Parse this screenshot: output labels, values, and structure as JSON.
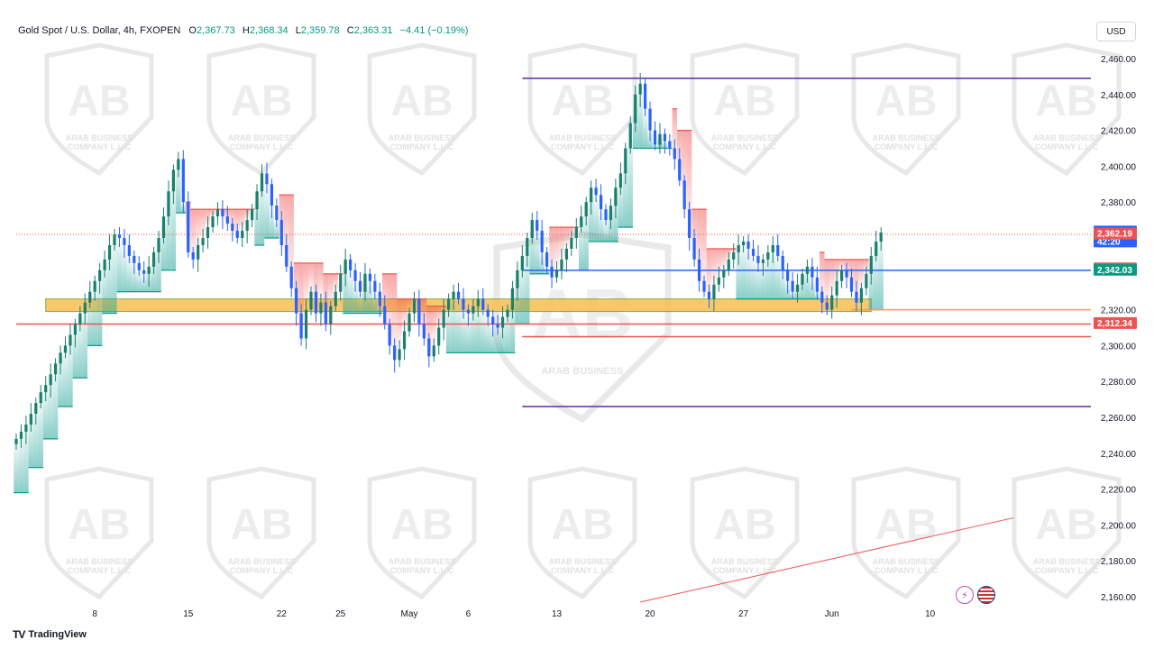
{
  "header": {
    "symbol": "Gold Spot / U.S. Dollar, 4h, FXOPEN",
    "open_label": "O",
    "open": "2,367.73",
    "high_label": "H",
    "high": "2,368.34",
    "low_label": "L",
    "low": "2,359.78",
    "close_label": "C",
    "close": "2,363.31",
    "change": "−4.41 (−0.19%)"
  },
  "currency": "USD",
  "brand": {
    "logo": "TV",
    "name": "TradingView"
  },
  "watermark": {
    "line1": "ARAB BUSINESS",
    "line2": "COMPANY L.L.C",
    "monogram": "AB"
  },
  "colors": {
    "up": "#089981",
    "down": "#2962ff",
    "bull_fill": "#26a69a",
    "bear_fill": "#ef5350",
    "purple": "#5b2c9e",
    "blue_line": "#2962ff",
    "red_line": "#ef5350",
    "zone": "#f9bf53",
    "orange_line": "#f5a623"
  },
  "icons": {
    "lightning": "lightning-icon",
    "flag": "us-flag-icon"
  },
  "chart_data": {
    "type": "candlestick",
    "y_range": [
      2150,
      2470
    ],
    "y_ticks": [
      {
        "value": 2460,
        "label": "2,460.00"
      },
      {
        "value": 2440,
        "label": "2,440.00"
      },
      {
        "value": 2420,
        "label": "2,420.00"
      },
      {
        "value": 2400,
        "label": "2,400.00"
      },
      {
        "value": 2380,
        "label": "2,380.00"
      },
      {
        "value": 2320,
        "label": "2,320.00"
      },
      {
        "value": 2300,
        "label": "2,300.00"
      },
      {
        "value": 2280,
        "label": "2,280.00"
      },
      {
        "value": 2260,
        "label": "2,260.00"
      },
      {
        "value": 2240,
        "label": "2,240.00"
      },
      {
        "value": 2220,
        "label": "2,220.00"
      },
      {
        "value": 2200,
        "label": "2,200.00"
      },
      {
        "value": 2180,
        "label": "2,180.00"
      },
      {
        "value": 2160,
        "label": "2,160.00"
      }
    ],
    "x_ticks": [
      {
        "label": "8",
        "index": 16
      },
      {
        "label": "15",
        "index": 35
      },
      {
        "label": "22",
        "index": 54
      },
      {
        "label": "25",
        "index": 66
      },
      {
        "label": "May",
        "index": 80
      },
      {
        "label": "6",
        "index": 92
      },
      {
        "label": "13",
        "index": 110
      },
      {
        "label": "20",
        "index": 129
      },
      {
        "label": "27",
        "index": 148
      },
      {
        "label": "Jun",
        "index": 166
      },
      {
        "label": "10",
        "index": 186
      }
    ],
    "price_tags": [
      {
        "value": 2363.31,
        "label": "2,363.31",
        "sub": "42:20",
        "color": "#2962ff"
      },
      {
        "value": 2362.19,
        "label": "2,362.19",
        "color": "#ef5350"
      },
      {
        "value": 2342.81,
        "label": "2,342.81",
        "color": "#ef5350"
      },
      {
        "value": 2342.03,
        "label": "2,342.03",
        "color": "#089981"
      },
      {
        "value": 2312.34,
        "label": "2,312.34",
        "color": "#ef5350"
      }
    ],
    "levels": [
      {
        "value": 2449,
        "from_index": 103,
        "color": "#5b2c9e"
      },
      {
        "value": 2342,
        "from_index": 103,
        "color": "#2962ff"
      },
      {
        "value": 2305,
        "from_index": 103,
        "color": "#ef5350"
      },
      {
        "value": 2266,
        "from_index": 103,
        "color": "#5b2c9e"
      },
      {
        "value": 2320,
        "from_index": 170,
        "color": "#f5a623"
      },
      {
        "value": 2312,
        "from_index": 0,
        "color": "#ef5350"
      },
      {
        "value": 2362,
        "from_index": 0,
        "color": "#ef5350",
        "dotted": true
      }
    ],
    "zone": {
      "from_index": 6,
      "to_index": 174,
      "low": 2319,
      "high": 2326
    },
    "trendline": {
      "from_index": 127,
      "from_value": 2157,
      "to_index": 203,
      "to_value": 2204
    },
    "closes": [
      2248,
      2252,
      2256,
      2262,
      2268,
      2274,
      2278,
      2284,
      2290,
      2296,
      2300,
      2306,
      2312,
      2318,
      2324,
      2330,
      2336,
      2342,
      2348,
      2356,
      2362,
      2360,
      2356,
      2350,
      2346,
      2342,
      2340,
      2344,
      2352,
      2360,
      2372,
      2386,
      2398,
      2404,
      2380,
      2352,
      2348,
      2356,
      2360,
      2366,
      2372,
      2376,
      2372,
      2368,
      2364,
      2360,
      2364,
      2370,
      2376,
      2386,
      2396,
      2390,
      2378,
      2370,
      2356,
      2344,
      2332,
      2318,
      2304,
      2320,
      2330,
      2318,
      2324,
      2312,
      2322,
      2330,
      2340,
      2348,
      2342,
      2336,
      2330,
      2340,
      2336,
      2330,
      2322,
      2312,
      2300,
      2292,
      2298,
      2308,
      2318,
      2326,
      2312,
      2304,
      2294,
      2300,
      2310,
      2320,
      2326,
      2330,
      2326,
      2320,
      2318,
      2322,
      2326,
      2320,
      2316,
      2312,
      2310,
      2316,
      2320,
      2332,
      2342,
      2350,
      2360,
      2370,
      2364,
      2352,
      2344,
      2338,
      2342,
      2348,
      2354,
      2360,
      2366,
      2372,
      2380,
      2388,
      2384,
      2376,
      2370,
      2378,
      2388,
      2396,
      2410,
      2424,
      2440,
      2446,
      2432,
      2420,
      2412,
      2418,
      2414,
      2410,
      2404,
      2392,
      2376,
      2360,
      2348,
      2336,
      2330,
      2326,
      2334,
      2338,
      2342,
      2348,
      2352,
      2356,
      2358,
      2354,
      2350,
      2346,
      2348,
      2352,
      2356,
      2350,
      2342,
      2336,
      2330,
      2334,
      2340,
      2344,
      2338,
      2330,
      2324,
      2320,
      2328,
      2336,
      2342,
      2338,
      2330,
      2324,
      2332,
      2340,
      2350,
      2358,
      2363
    ]
  }
}
